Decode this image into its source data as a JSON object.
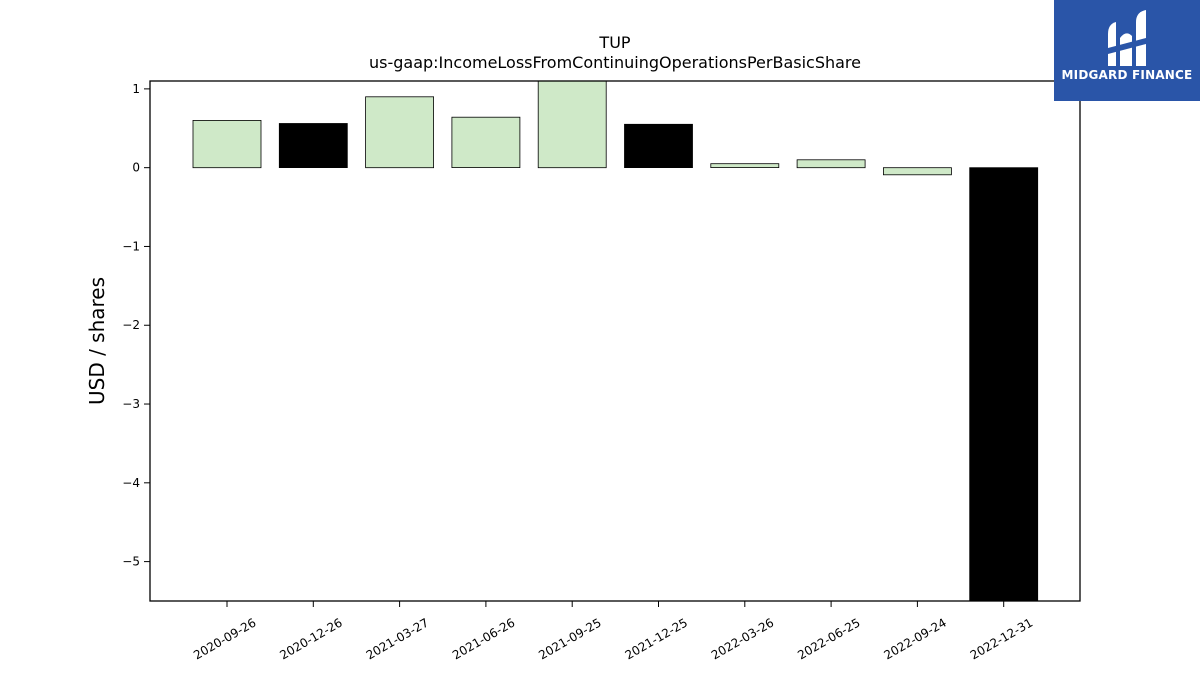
{
  "brand": {
    "name": "MIDGARD FINANCE",
    "icon": "midgard-logo-icon",
    "color": "#2a55a8"
  },
  "chart_data": {
    "type": "bar",
    "title": "TUP",
    "subtitle": "us-gaap:IncomeLossFromContinuingOperationsPerBasicShare",
    "xlabel": "",
    "ylabel": "USD / shares",
    "ylim": [
      -5.5,
      1.1
    ],
    "yticks": [
      1,
      0,
      -1,
      -2,
      -3,
      -4,
      -5
    ],
    "ytick_labels": [
      "1",
      "0",
      "−1",
      "−2",
      "−3",
      "−4",
      "−5"
    ],
    "grid": false,
    "categories": [
      "2020-09-26",
      "2020-12-26",
      "2021-03-27",
      "2021-06-26",
      "2021-09-25",
      "2021-12-25",
      "2022-03-26",
      "2022-06-25",
      "2022-09-24",
      "2022-12-31"
    ],
    "values": [
      0.6,
      0.56,
      0.9,
      0.64,
      1.1,
      0.55,
      0.05,
      0.1,
      -0.09,
      -5.5
    ],
    "bar_colors": [
      "#cfe9c8",
      "#000000",
      "#cfe9c8",
      "#cfe9c8",
      "#cfe9c8",
      "#000000",
      "#cfe9c8",
      "#cfe9c8",
      "#cfe9c8",
      "#000000"
    ]
  }
}
